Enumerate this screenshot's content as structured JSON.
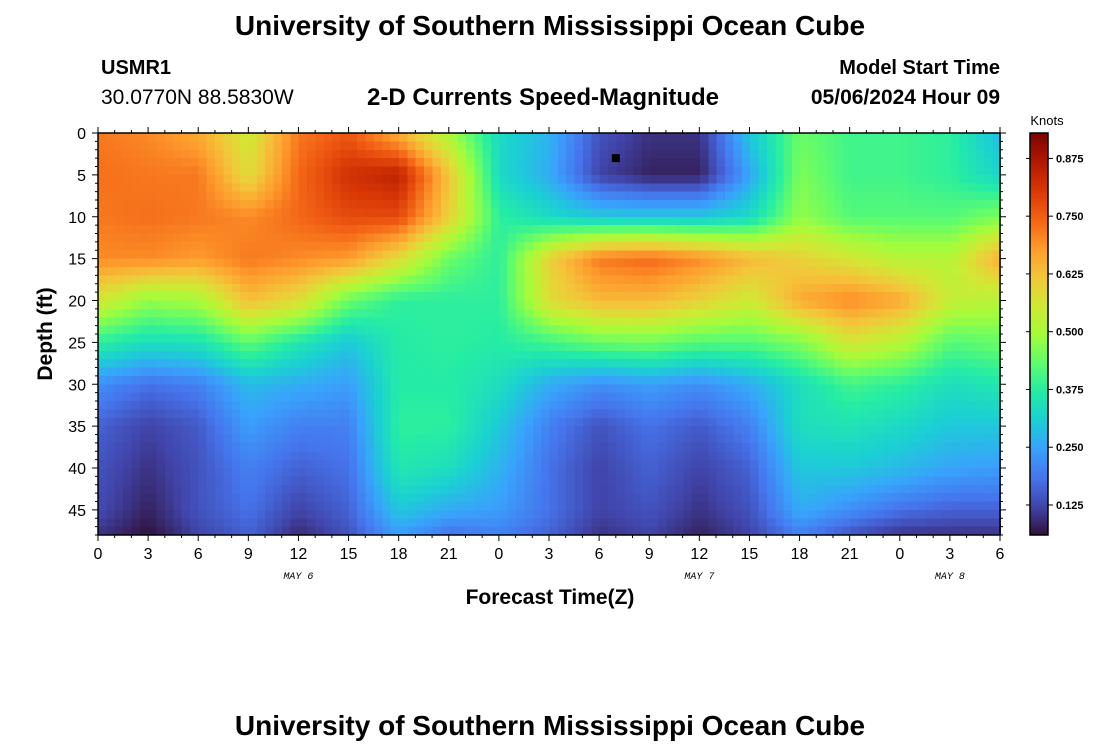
{
  "header": {
    "title": "University of Southern Mississippi Ocean Cube",
    "station": "USMR1",
    "coords": "30.0770N  88.5830W",
    "subtitle": "2-D Currents Speed-Magnitude",
    "model_start_label": "Model Start Time",
    "model_start_value": "05/06/2024 Hour 09"
  },
  "footer": {
    "title": "University of Southern Mississippi Ocean Cube"
  },
  "colors": {
    "colormap": [
      "#30123b",
      "#4145ab",
      "#4675ed",
      "#39a2fc",
      "#1bcfd4",
      "#24eca6",
      "#61fc6c",
      "#a4fc3b",
      "#d1e834",
      "#f3c63a",
      "#fe9b2d",
      "#f36315",
      "#d93806",
      "#b11901",
      "#7a0402"
    ]
  },
  "chart_data": {
    "type": "heatmap",
    "xlabel": "Forecast Time(Z)",
    "ylabel": "Depth (ft)",
    "colorbar_label": "Knots",
    "x_ticks": [
      "0",
      "3",
      "6",
      "9",
      "12",
      "15",
      "18",
      "21",
      "0",
      "3",
      "6",
      "9",
      "12",
      "15",
      "18",
      "21",
      "0",
      "3",
      "6"
    ],
    "x_range_hours": [
      0,
      54
    ],
    "date_labels": [
      {
        "text": "MAY 6",
        "hour": 12
      },
      {
        "text": "MAY 7",
        "hour": 36
      },
      {
        "text": "MAY 8",
        "hour": 51
      }
    ],
    "y_ticks": [
      0,
      5,
      10,
      15,
      20,
      25,
      30,
      35,
      40,
      45
    ],
    "ylim": [
      48,
      0
    ],
    "colorbar_ticks": [
      "0.875",
      "0.750",
      "0.625",
      "0.500",
      "0.375",
      "0.250",
      "0.125"
    ],
    "colorbar_range": [
      0.06,
      0.93
    ],
    "marker": {
      "hour": 31,
      "depth": 3
    },
    "depths": [
      0,
      5,
      10,
      15,
      20,
      25,
      30,
      35,
      40,
      45,
      48
    ],
    "hours": [
      0,
      3,
      6,
      9,
      12,
      15,
      18,
      21,
      24,
      27,
      30,
      33,
      36,
      39,
      42,
      45,
      48,
      51,
      54
    ],
    "values": [
      [
        0.72,
        0.7,
        0.66,
        0.55,
        0.72,
        0.76,
        0.65,
        0.5,
        0.33,
        0.27,
        0.14,
        0.1,
        0.1,
        0.3,
        0.44,
        0.4,
        0.4,
        0.38,
        0.28
      ],
      [
        0.73,
        0.72,
        0.72,
        0.58,
        0.74,
        0.82,
        0.85,
        0.62,
        0.33,
        0.26,
        0.12,
        0.08,
        0.08,
        0.25,
        0.46,
        0.4,
        0.4,
        0.38,
        0.32
      ],
      [
        0.72,
        0.73,
        0.72,
        0.7,
        0.74,
        0.78,
        0.78,
        0.6,
        0.38,
        0.33,
        0.3,
        0.3,
        0.3,
        0.33,
        0.48,
        0.42,
        0.42,
        0.42,
        0.46
      ],
      [
        0.7,
        0.7,
        0.68,
        0.72,
        0.7,
        0.68,
        0.58,
        0.44,
        0.38,
        0.6,
        0.72,
        0.74,
        0.7,
        0.64,
        0.6,
        0.56,
        0.52,
        0.52,
        0.66
      ],
      [
        0.56,
        0.48,
        0.5,
        0.63,
        0.58,
        0.44,
        0.38,
        0.38,
        0.38,
        0.58,
        0.64,
        0.64,
        0.6,
        0.55,
        0.66,
        0.7,
        0.66,
        0.54,
        0.52
      ],
      [
        0.38,
        0.34,
        0.35,
        0.43,
        0.36,
        0.3,
        0.37,
        0.38,
        0.37,
        0.4,
        0.44,
        0.45,
        0.42,
        0.42,
        0.46,
        0.56,
        0.52,
        0.42,
        0.44
      ],
      [
        0.22,
        0.18,
        0.2,
        0.28,
        0.26,
        0.24,
        0.37,
        0.37,
        0.34,
        0.26,
        0.22,
        0.24,
        0.22,
        0.26,
        0.34,
        0.4,
        0.38,
        0.34,
        0.36
      ],
      [
        0.16,
        0.12,
        0.15,
        0.24,
        0.2,
        0.2,
        0.38,
        0.38,
        0.3,
        0.2,
        0.14,
        0.18,
        0.15,
        0.2,
        0.34,
        0.35,
        0.33,
        0.3,
        0.3
      ],
      [
        0.14,
        0.1,
        0.14,
        0.2,
        0.16,
        0.18,
        0.36,
        0.34,
        0.27,
        0.18,
        0.12,
        0.16,
        0.12,
        0.16,
        0.3,
        0.3,
        0.28,
        0.25,
        0.24
      ],
      [
        0.13,
        0.08,
        0.14,
        0.18,
        0.12,
        0.16,
        0.3,
        0.26,
        0.24,
        0.18,
        0.12,
        0.14,
        0.1,
        0.14,
        0.26,
        0.22,
        0.18,
        0.16,
        0.16
      ],
      [
        0.1,
        0.06,
        0.12,
        0.16,
        0.09,
        0.14,
        0.24,
        0.18,
        0.2,
        0.16,
        0.1,
        0.12,
        0.08,
        0.12,
        0.2,
        0.14,
        0.1,
        0.1,
        0.1
      ]
    ]
  }
}
